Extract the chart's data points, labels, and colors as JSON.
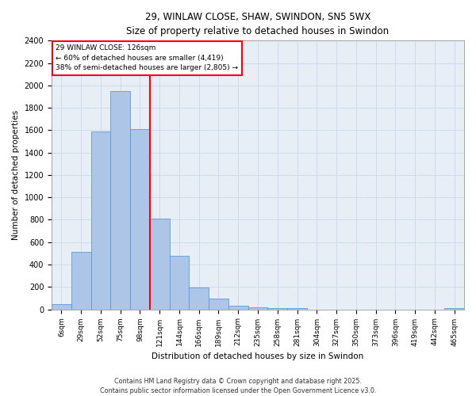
{
  "title_line1": "29, WINLAW CLOSE, SHAW, SWINDON, SN5 5WX",
  "title_line2": "Size of property relative to detached houses in Swindon",
  "xlabel": "Distribution of detached houses by size in Swindon",
  "ylabel": "Number of detached properties",
  "categories": [
    "6sqm",
    "29sqm",
    "52sqm",
    "75sqm",
    "98sqm",
    "121sqm",
    "144sqm",
    "166sqm",
    "189sqm",
    "212sqm",
    "235sqm",
    "258sqm",
    "281sqm",
    "304sqm",
    "327sqm",
    "350sqm",
    "373sqm",
    "396sqm",
    "419sqm",
    "442sqm",
    "465sqm"
  ],
  "values": [
    50,
    510,
    1590,
    1950,
    1610,
    810,
    480,
    195,
    95,
    35,
    20,
    10,
    10,
    0,
    0,
    0,
    0,
    0,
    0,
    0,
    10
  ],
  "bar_color": "#adc6e8",
  "bar_edge_color": "#5b9bd5",
  "grid_color": "#c8d8ec",
  "background_color": "#e8eef5",
  "vline_index": 5,
  "vline_color": "red",
  "annotation_title": "29 WINLAW CLOSE: 126sqm",
  "annotation_line1": "← 60% of detached houses are smaller (4,419)",
  "annotation_line2": "38% of semi-detached houses are larger (2,805) →",
  "annotation_box_color": "red",
  "ylim": [
    0,
    2400
  ],
  "yticks": [
    0,
    200,
    400,
    600,
    800,
    1000,
    1200,
    1400,
    1600,
    1800,
    2000,
    2200,
    2400
  ],
  "footer_line1": "Contains HM Land Registry data © Crown copyright and database right 2025.",
  "footer_line2": "Contains public sector information licensed under the Open Government Licence v3.0."
}
